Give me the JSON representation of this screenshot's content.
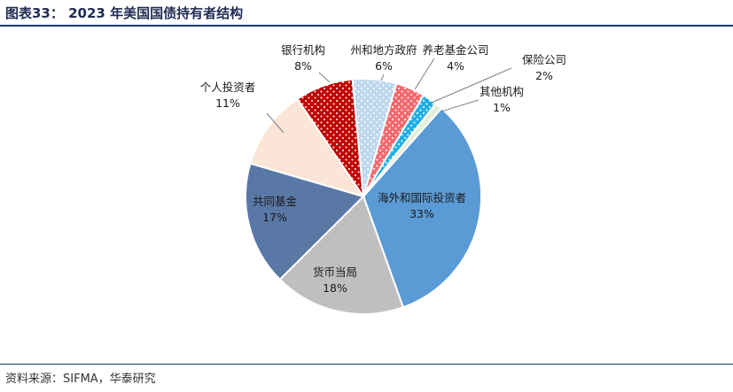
{
  "header": {
    "title": "图表33： 2023 年美国国债持有者结构"
  },
  "footer": {
    "source": "资料来源：SIFMA，华泰研究"
  },
  "chart_data": {
    "type": "pie",
    "title": "2023 年美国国债持有者结构",
    "slices": [
      {
        "name": "海外和国际投资者",
        "value": 33,
        "label": "33%",
        "color": "#5b9bd5",
        "pattern": "none"
      },
      {
        "name": "货币当局",
        "value": 18,
        "label": "18%",
        "color": "#bfbfbf",
        "pattern": "none"
      },
      {
        "name": "共同基金",
        "value": 17,
        "label": "17%",
        "color": "#5a78a6",
        "pattern": "none"
      },
      {
        "name": "个人投资者",
        "value": 11,
        "label": "11%",
        "color": "#fbe5d6",
        "pattern": "none"
      },
      {
        "name": "银行机构",
        "value": 8,
        "label": "8%",
        "color": "#c00000",
        "pattern": "dots"
      },
      {
        "name": "州和地方政府",
        "value": 6,
        "label": "6%",
        "color": "#bdd7ee",
        "pattern": "dots"
      },
      {
        "name": "养老基金公司",
        "value": 4,
        "label": "4%",
        "color": "#f4686d",
        "pattern": "dots"
      },
      {
        "name": "保险公司",
        "value": 2,
        "label": "2%",
        "color": "#1eaee6",
        "pattern": "dots"
      },
      {
        "name": "其他机构",
        "value": 1,
        "label": "1%",
        "color": "#e2efda",
        "pattern": "none"
      }
    ]
  }
}
